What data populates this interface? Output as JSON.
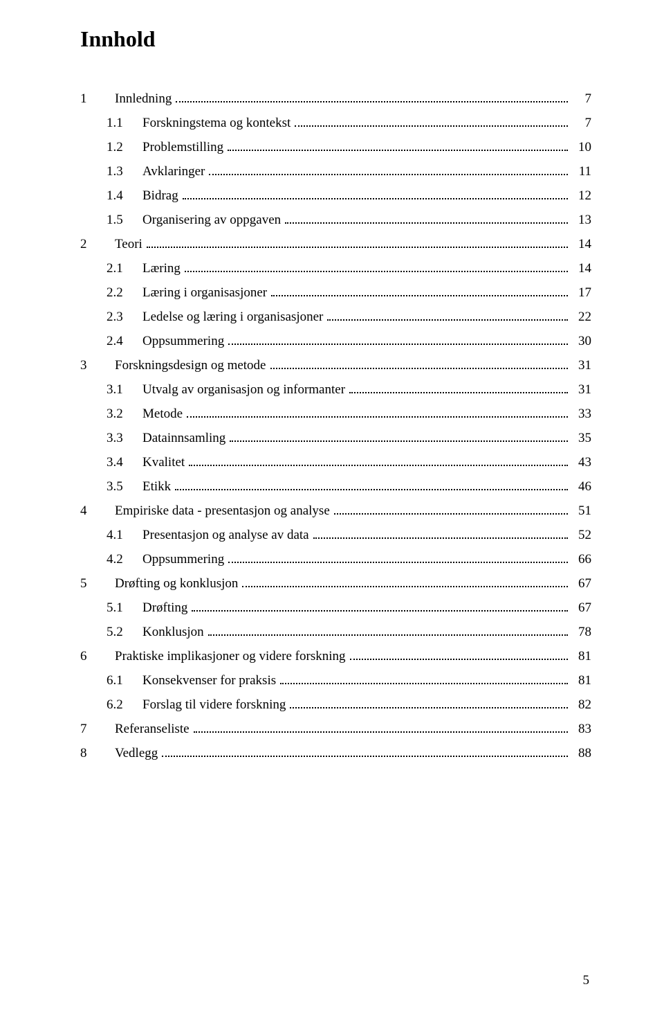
{
  "title": "Innhold",
  "page_number": "5",
  "colors": {
    "text": "#000000",
    "background": "#ffffff"
  },
  "typography": {
    "title_fontsize": 32,
    "body_fontsize": 19,
    "font_family": "Times New Roman"
  },
  "entries": [
    {
      "level": 0,
      "num": "1",
      "label": "Innledning",
      "page": "7",
      "gap_before": false
    },
    {
      "level": 1,
      "num": "1.1",
      "label": "Forskningstema og kontekst",
      "page": "7",
      "gap_before": true
    },
    {
      "level": 1,
      "num": "1.2",
      "label": "Problemstilling",
      "page": "10",
      "gap_before": false
    },
    {
      "level": 1,
      "num": "1.3",
      "label": "Avklaringer",
      "page": "11",
      "gap_before": false
    },
    {
      "level": 1,
      "num": "1.4",
      "label": "Bidrag",
      "page": "12",
      "gap_before": false
    },
    {
      "level": 1,
      "num": "1.5",
      "label": "Organisering av oppgaven",
      "page": "13",
      "gap_before": false
    },
    {
      "level": 0,
      "num": "2",
      "label": "Teori",
      "page": "14",
      "gap_before": false
    },
    {
      "level": 1,
      "num": "2.1",
      "label": "Læring",
      "page": "14",
      "gap_before": true
    },
    {
      "level": 1,
      "num": "2.2",
      "label": "Læring i organisasjoner",
      "page": "17",
      "gap_before": false
    },
    {
      "level": 1,
      "num": "2.3",
      "label": "Ledelse og læring i organisasjoner",
      "page": "22",
      "gap_before": false
    },
    {
      "level": 1,
      "num": "2.4",
      "label": "Oppsummering",
      "page": "30",
      "gap_before": false
    },
    {
      "level": 0,
      "num": "3",
      "label": "Forskningsdesign og metode",
      "page": "31",
      "gap_before": false
    },
    {
      "level": 1,
      "num": "3.1",
      "label": "Utvalg av organisasjon og informanter",
      "page": "31",
      "gap_before": true
    },
    {
      "level": 1,
      "num": "3.2",
      "label": "Metode",
      "page": "33",
      "gap_before": false
    },
    {
      "level": 1,
      "num": "3.3",
      "label": "Datainnsamling",
      "page": "35",
      "gap_before": false
    },
    {
      "level": 1,
      "num": "3.4",
      "label": "Kvalitet",
      "page": "43",
      "gap_before": false
    },
    {
      "level": 1,
      "num": "3.5",
      "label": "Etikk",
      "page": "46",
      "gap_before": false
    },
    {
      "level": 0,
      "num": "4",
      "label": "Empiriske data - presentasjon og analyse",
      "page": "51",
      "gap_before": false
    },
    {
      "level": 1,
      "num": "4.1",
      "label": "Presentasjon og analyse av data",
      "page": "52",
      "gap_before": true
    },
    {
      "level": 1,
      "num": "4.2",
      "label": "Oppsummering",
      "page": "66",
      "gap_before": false
    },
    {
      "level": 0,
      "num": "5",
      "label": "Drøfting og konklusjon",
      "page": "67",
      "gap_before": false
    },
    {
      "level": 1,
      "num": "5.1",
      "label": "Drøfting",
      "page": "67",
      "gap_before": true
    },
    {
      "level": 1,
      "num": "5.2",
      "label": "Konklusjon",
      "page": "78",
      "gap_before": false
    },
    {
      "level": 0,
      "num": "6",
      "label": "Praktiske implikasjoner og videre forskning",
      "page": "81",
      "gap_before": false
    },
    {
      "level": 1,
      "num": "6.1",
      "label": "Konsekvenser for praksis",
      "page": "81",
      "gap_before": true
    },
    {
      "level": 1,
      "num": "6.2",
      "label": "Forslag til videre forskning",
      "page": "82",
      "gap_before": false
    },
    {
      "level": 0,
      "num": "7",
      "label": "Referanseliste",
      "page": "83",
      "gap_before": false
    },
    {
      "level": 0,
      "num": "8",
      "label": "Vedlegg",
      "page": "88",
      "gap_before": true
    }
  ]
}
